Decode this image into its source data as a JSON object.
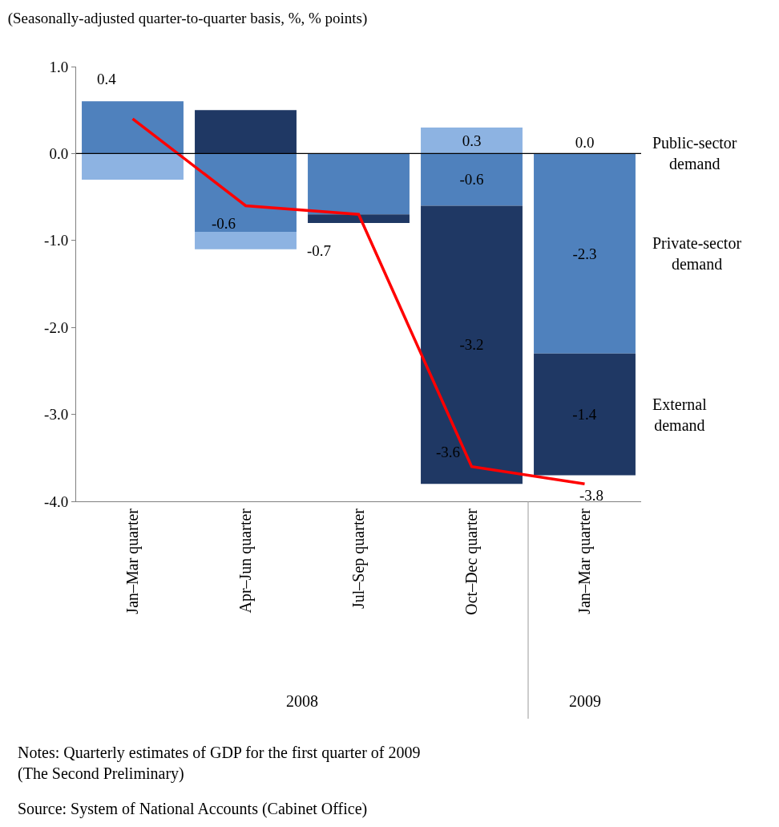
{
  "chart_data": {
    "type": "bar",
    "stacked": true,
    "subtitle": "(Seasonally-adjusted quarter-to-quarter basis, %, % points)",
    "categories": [
      "Jan–Mar quarter",
      "Apr–Jun quarter",
      "Jul–Sep quarter",
      "Oct–Dec quarter",
      "Jan–Mar quarter"
    ],
    "series": [
      {
        "name": "Private-sector demand",
        "color": "#4f81bd",
        "values": [
          0.6,
          -0.9,
          -0.7,
          -0.6,
          -2.3
        ],
        "value_labels": [
          null,
          null,
          null,
          "-0.6",
          "-2.3"
        ]
      },
      {
        "name": "Public-sector demand",
        "color": "#8db3e2",
        "values": [
          -0.3,
          -0.2,
          0.0,
          0.3,
          0.0
        ],
        "value_labels": [
          null,
          null,
          null,
          "0.3",
          "0.0"
        ]
      },
      {
        "name": "External demand",
        "color": "#1f3864",
        "values": [
          0.0,
          0.5,
          -0.1,
          -3.2,
          -1.4
        ],
        "value_labels": [
          null,
          null,
          null,
          "-3.2",
          "-1.4"
        ]
      },
      {
        "type": "line",
        "color": "#ff0000",
        "values": [
          0.4,
          -0.6,
          -0.7,
          -3.6,
          -3.8
        ],
        "value_labels": [
          "0.4",
          "-0.6",
          "-0.7",
          "-3.6",
          "-3.8"
        ]
      }
    ],
    "ylim": [
      -4.0,
      1.0
    ],
    "yticks": [
      {
        "value": 1.0,
        "label": "1.0"
      },
      {
        "value": 0.0,
        "label": "0.0"
      },
      {
        "value": -1.0,
        "label": "-1.0"
      },
      {
        "value": -2.0,
        "label": "-2.0"
      },
      {
        "value": -3.0,
        "label": "-3.0"
      },
      {
        "value": -4.0,
        "label": "-4.0"
      }
    ],
    "ref_lines": [
      {
        "axis": "y",
        "value": 0.0,
        "color": "#000000"
      }
    ],
    "marker": "none",
    "annotations": [
      "2008",
      "2009",
      "Notes: Quarterly estimates of GDP for the first quarter of 2009\n(The Second Preliminary)",
      "Source: System of National Accounts (Cabinet Office)"
    ]
  }
}
